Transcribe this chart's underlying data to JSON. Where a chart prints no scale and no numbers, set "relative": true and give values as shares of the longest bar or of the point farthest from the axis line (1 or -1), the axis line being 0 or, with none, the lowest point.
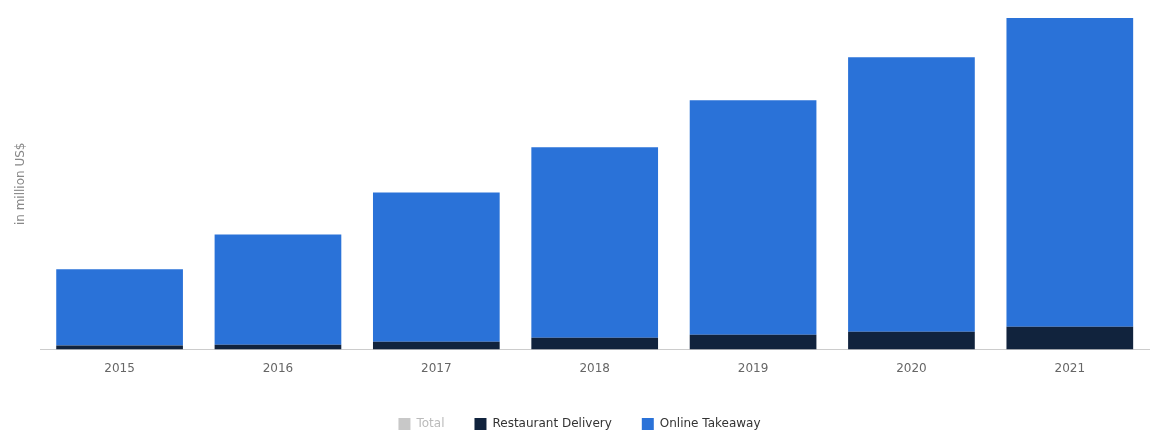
{
  "chart_data": {
    "type": "bar",
    "ylabel": "in million US$",
    "categories": [
      "2015",
      "2016",
      "2017",
      "2018",
      "2019",
      "2020",
      "2021"
    ],
    "stacked": true,
    "relative": true,
    "legend": "bottom",
    "series": [
      {
        "name": "Total",
        "color": "#c8c8c8",
        "values": [
          null,
          null,
          null,
          null,
          null,
          null,
          null
        ]
      },
      {
        "name": "Restaurant Delivery",
        "color": "#11233d",
        "values": [
          0.012,
          0.015,
          0.024,
          0.036,
          0.045,
          0.054,
          0.069
        ]
      },
      {
        "name": "Online Takeaway",
        "color": "#2a72d8",
        "values": [
          0.23,
          0.332,
          0.45,
          0.574,
          0.707,
          0.828,
          0.931
        ]
      }
    ]
  }
}
